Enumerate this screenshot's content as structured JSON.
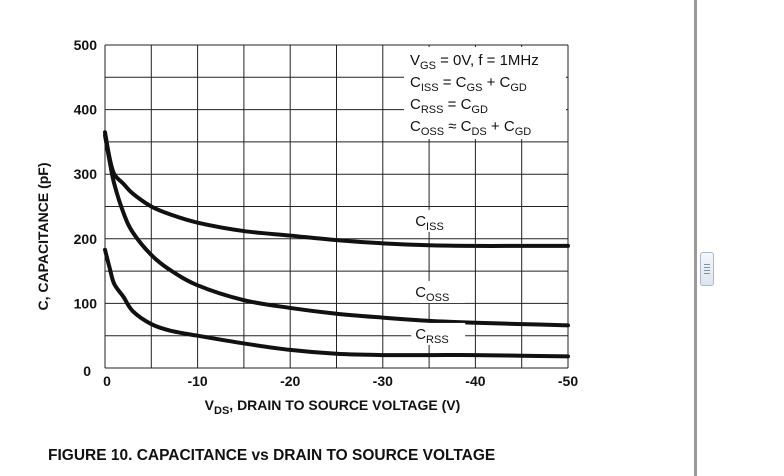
{
  "chart_data": {
    "type": "line",
    "title": "FIGURE 10.  CAPACITANCE vs DRAIN TO SOURCE VOLTAGE",
    "xlabel": {
      "main": "V",
      "sub": "DS",
      "rest": ", DRAIN TO SOURCE VOLTAGE (V)"
    },
    "ylabel": "C, CAPACITANCE (pF)",
    "xlim": [
      0,
      -50
    ],
    "ylim": [
      0,
      500
    ],
    "x_ticks": [
      0,
      -10,
      -20,
      -30,
      -40,
      -50
    ],
    "x_tick_labels": [
      "0",
      "-10",
      "-20",
      "-30",
      "-40",
      "-50"
    ],
    "y_ticks": [
      0,
      100,
      200,
      300,
      400,
      500
    ],
    "y_tick_labels": [
      "0",
      "100",
      "200",
      "300",
      "400",
      "500"
    ],
    "grid": true,
    "legend": {
      "placement": "top-right",
      "lines": [
        {
          "parts": [
            [
              "V",
              ""
            ],
            [
              "GS",
              "sub"
            ],
            [
              " = 0V, f = 1MHz",
              ""
            ]
          ]
        },
        {
          "parts": [
            [
              "C",
              ""
            ],
            [
              "ISS",
              "sub"
            ],
            [
              " = C",
              ""
            ],
            [
              "GS",
              "sub"
            ],
            [
              " + C",
              ""
            ],
            [
              "GD",
              "sub"
            ]
          ]
        },
        {
          "parts": [
            [
              "C",
              ""
            ],
            [
              "RSS",
              "sub"
            ],
            [
              " = C",
              ""
            ],
            [
              "GD",
              "sub"
            ]
          ]
        },
        {
          "parts": [
            [
              "C",
              ""
            ],
            [
              "OSS",
              "sub"
            ],
            [
              " ≈ C",
              ""
            ],
            [
              "DS",
              "sub"
            ],
            [
              " + C",
              ""
            ],
            [
              "GD",
              "sub"
            ]
          ]
        }
      ]
    },
    "series": [
      {
        "name": "ISS",
        "label_main": "C",
        "label_sub": "ISS",
        "label_at": [
          -33.5,
          220
        ],
        "x": [
          0,
          -0.5,
          -1,
          -2,
          -3,
          -5,
          -7,
          -10,
          -15,
          -20,
          -25,
          -30,
          -35,
          -40,
          -45,
          -50
        ],
        "y": [
          365,
          325,
          300,
          285,
          270,
          250,
          238,
          225,
          212,
          205,
          198,
          193,
          190,
          189,
          189,
          189
        ]
      },
      {
        "name": "OSS",
        "label_main": "C",
        "label_sub": "OSS",
        "label_at": [
          -33.5,
          110
        ],
        "x": [
          0,
          -0.5,
          -1,
          -2,
          -3,
          -5,
          -7,
          -10,
          -15,
          -20,
          -25,
          -30,
          -35,
          -40,
          -45,
          -50
        ],
        "y": [
          360,
          320,
          285,
          240,
          210,
          175,
          152,
          128,
          105,
          93,
          84,
          78,
          73,
          70,
          68,
          66
        ]
      },
      {
        "name": "RSS",
        "label_main": "C",
        "label_sub": "RSS",
        "label_at": [
          -33.5,
          45
        ],
        "x": [
          0,
          -0.5,
          -1,
          -2,
          -3,
          -5,
          -7,
          -10,
          -15,
          -20,
          -25,
          -30,
          -35,
          -40,
          -45,
          -50
        ],
        "y": [
          183,
          155,
          130,
          110,
          88,
          68,
          58,
          50,
          38,
          28,
          22,
          20,
          20,
          20,
          19,
          18
        ]
      }
    ]
  }
}
